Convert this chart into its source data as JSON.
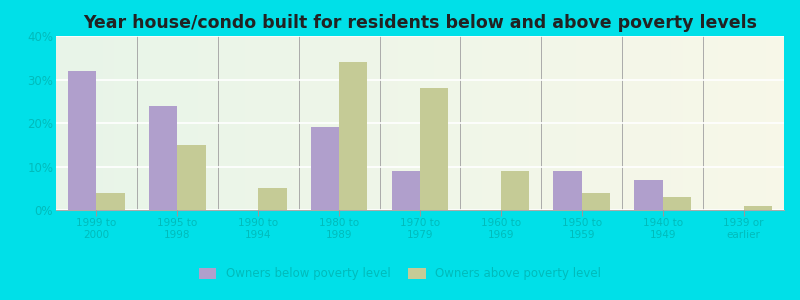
{
  "title": "Year house/condo built for residents below and above poverty levels",
  "categories": [
    "1999 to\n2000",
    "1995 to\n1998",
    "1990 to\n1994",
    "1980 to\n1989",
    "1970 to\n1979",
    "1960 to\n1969",
    "1950 to\n1959",
    "1940 to\n1949",
    "1939 or\nearlier"
  ],
  "below_poverty": [
    32,
    24,
    0,
    19,
    9,
    0,
    9,
    7,
    0
  ],
  "above_poverty": [
    4,
    15,
    5,
    34,
    28,
    9,
    4,
    3,
    1
  ],
  "below_color": "#b09fcc",
  "above_color": "#c5cb96",
  "ylim": [
    0,
    40
  ],
  "yticks": [
    0,
    10,
    20,
    30,
    40
  ],
  "ytick_labels": [
    "0%",
    "10%",
    "20%",
    "30%",
    "40%"
  ],
  "outer_bg": "#00e0e8",
  "bar_width": 0.35,
  "legend_below_label": "Owners below poverty level",
  "legend_above_label": "Owners above poverty level",
  "tick_color": "#00bbbb",
  "title_color": "#222222",
  "title_fontsize": 12.5
}
